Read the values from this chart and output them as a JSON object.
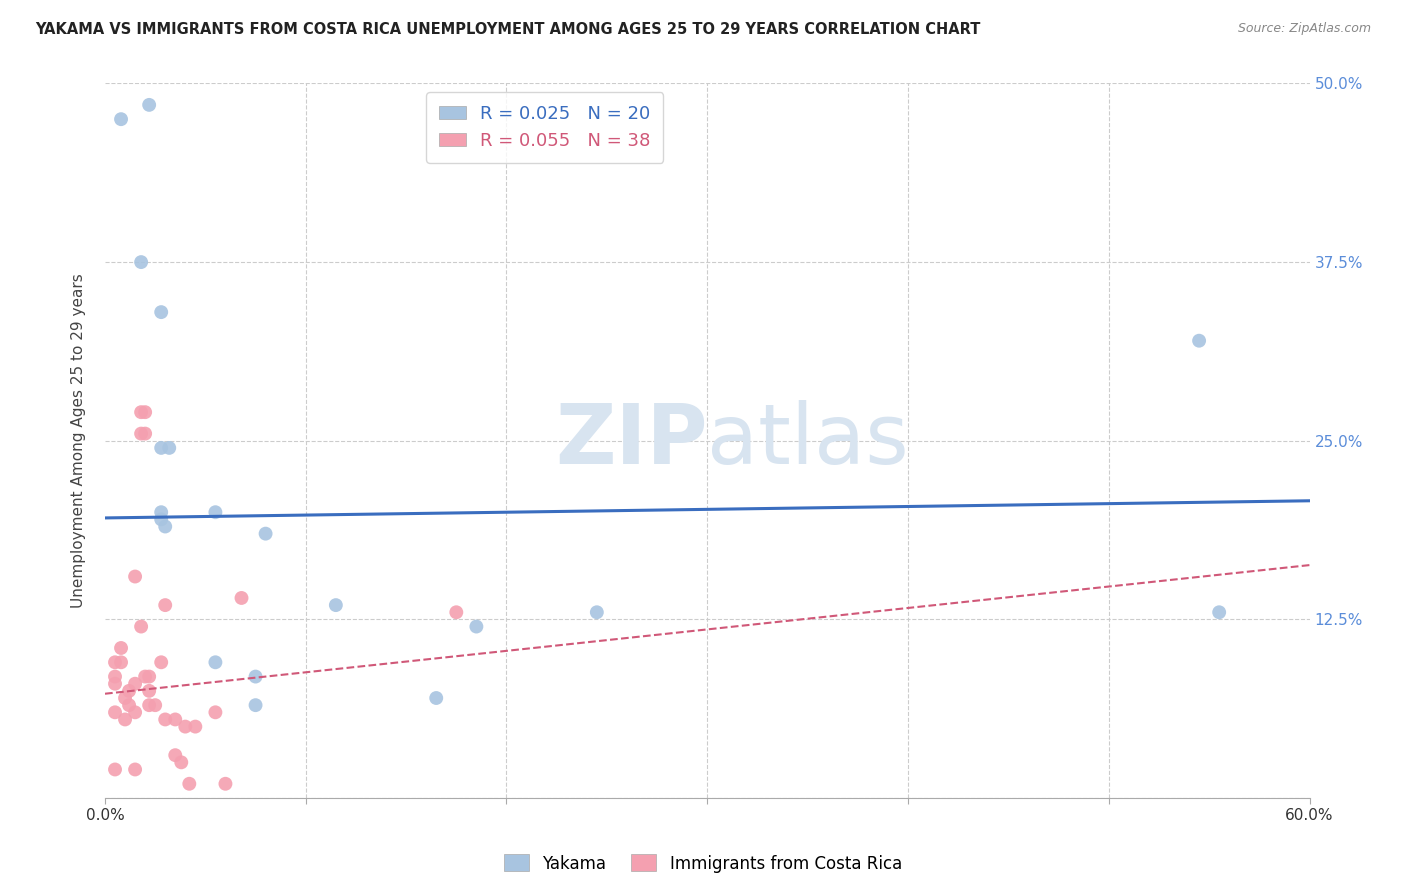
{
  "title": "YAKAMA VS IMMIGRANTS FROM COSTA RICA UNEMPLOYMENT AMONG AGES 25 TO 29 YEARS CORRELATION CHART",
  "source": "Source: ZipAtlas.com",
  "xlabel": "",
  "ylabel": "Unemployment Among Ages 25 to 29 years",
  "xlim": [
    0.0,
    0.6
  ],
  "ylim": [
    0.0,
    0.5
  ],
  "xticks": [
    0.0,
    0.1,
    0.2,
    0.3,
    0.4,
    0.5,
    0.6
  ],
  "xtick_labels": [
    "0.0%",
    "",
    "",
    "",
    "",
    "",
    "60.0%"
  ],
  "yticks": [
    0.0,
    0.125,
    0.25,
    0.375,
    0.5
  ],
  "ytick_labels_right": [
    "",
    "12.5%",
    "25.0%",
    "37.5%",
    "50.0%"
  ],
  "legend1_label": "R = 0.025   N = 20",
  "legend2_label": "R = 0.055   N = 38",
  "legend_xlabel": "Yakama",
  "legend_ylabel": "Immigrants from Costa Rica",
  "bg_color": "#ffffff",
  "grid_color": "#cccccc",
  "watermark_zip": "ZIP",
  "watermark_atlas": "atlas",
  "yakama_color": "#a8c4e0",
  "costa_rica_color": "#f4a0b0",
  "yakama_line_color": "#3a6dbf",
  "costa_rica_line_color": "#d05878",
  "right_axis_color": "#5b8dd9",
  "yakama_x": [
    0.008,
    0.022,
    0.018,
    0.028,
    0.028,
    0.032,
    0.028,
    0.028,
    0.03,
    0.055,
    0.055,
    0.075,
    0.075,
    0.08,
    0.115,
    0.165,
    0.185,
    0.245,
    0.545,
    0.555
  ],
  "yakama_y": [
    0.475,
    0.485,
    0.375,
    0.34,
    0.245,
    0.245,
    0.2,
    0.195,
    0.19,
    0.2,
    0.095,
    0.085,
    0.065,
    0.185,
    0.135,
    0.07,
    0.12,
    0.13,
    0.32,
    0.13
  ],
  "costa_rica_x": [
    0.005,
    0.005,
    0.005,
    0.005,
    0.005,
    0.008,
    0.008,
    0.01,
    0.01,
    0.012,
    0.012,
    0.015,
    0.015,
    0.015,
    0.015,
    0.018,
    0.018,
    0.018,
    0.02,
    0.02,
    0.02,
    0.022,
    0.022,
    0.022,
    0.025,
    0.028,
    0.03,
    0.03,
    0.035,
    0.035,
    0.038,
    0.04,
    0.042,
    0.045,
    0.055,
    0.06,
    0.068,
    0.175
  ],
  "costa_rica_y": [
    0.095,
    0.085,
    0.08,
    0.06,
    0.02,
    0.105,
    0.095,
    0.07,
    0.055,
    0.075,
    0.065,
    0.155,
    0.08,
    0.06,
    0.02,
    0.27,
    0.255,
    0.12,
    0.27,
    0.255,
    0.085,
    0.085,
    0.075,
    0.065,
    0.065,
    0.095,
    0.135,
    0.055,
    0.055,
    0.03,
    0.025,
    0.05,
    0.01,
    0.05,
    0.06,
    0.01,
    0.14,
    0.13
  ],
  "yakama_trend_x": [
    0.0,
    0.6
  ],
  "yakama_trend_y": [
    0.196,
    0.208
  ],
  "costa_rica_trend_x": [
    0.0,
    0.6
  ],
  "costa_rica_trend_y": [
    0.073,
    0.163
  ],
  "marker_size": 100
}
